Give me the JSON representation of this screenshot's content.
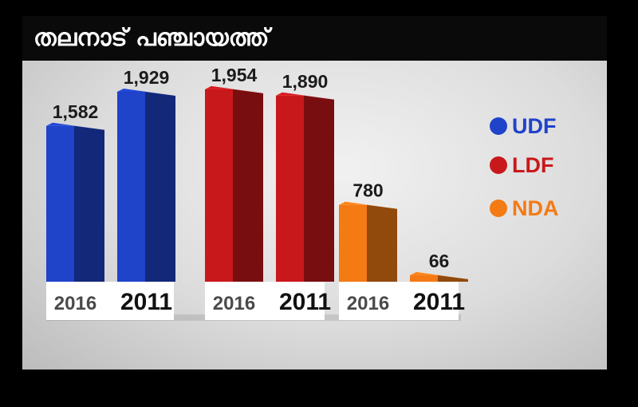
{
  "title": "തലനാട് പഞ്ചായത്ത്",
  "chart_data": {
    "type": "bar",
    "title": "തലനാട് പഞ്ചായത്ത്",
    "categories": [
      "2016",
      "2011"
    ],
    "series": [
      {
        "name": "UDF",
        "color": "#1f43c9",
        "values": [
          1582,
          1929
        ]
      },
      {
        "name": "LDF",
        "color": "#c9181b",
        "values": [
          1954,
          1890
        ]
      },
      {
        "name": "NDA",
        "color": "#f47a14",
        "values": [
          780,
          66
        ]
      }
    ],
    "legend": [
      "UDF",
      "LDF",
      "NDA"
    ],
    "legend_position": "right",
    "ylim": [
      0,
      2000
    ],
    "grid": false
  }
}
